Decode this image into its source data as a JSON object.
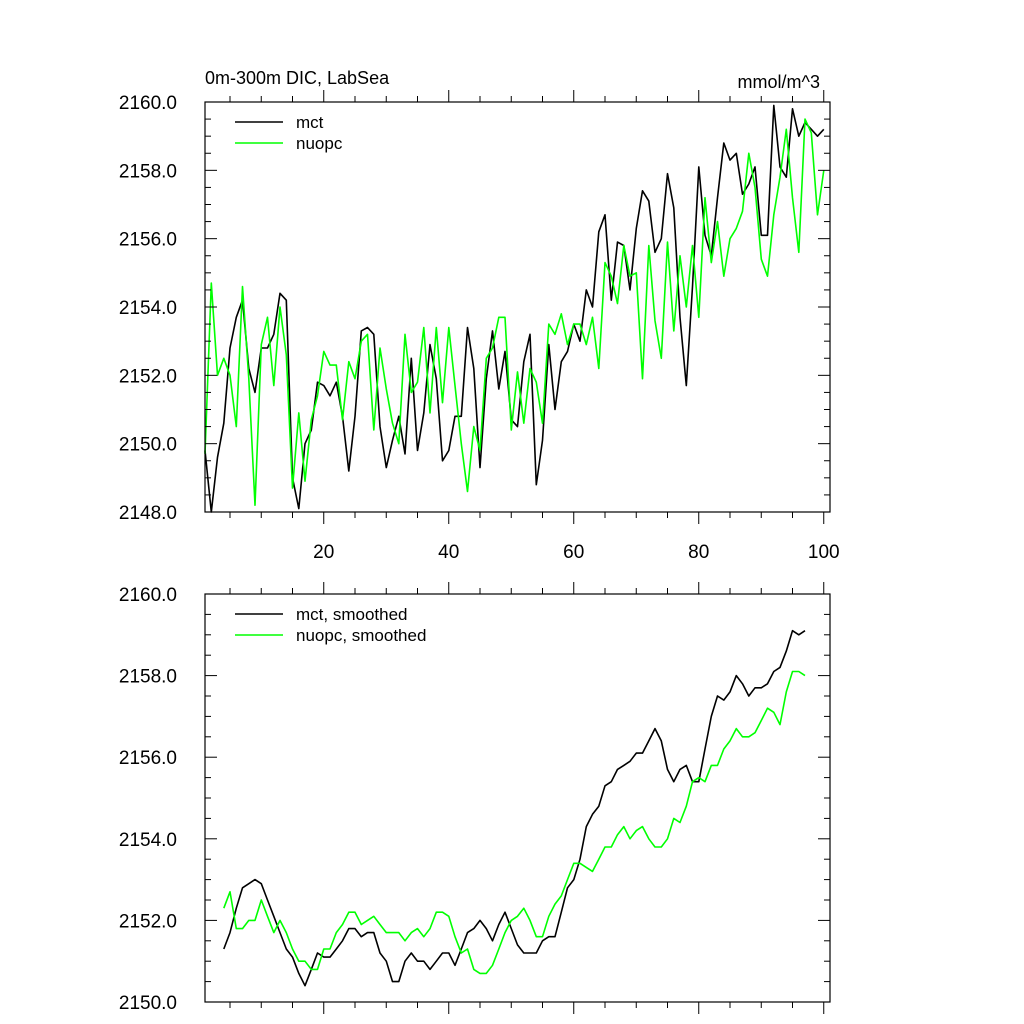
{
  "chart_data": [
    {
      "type": "line",
      "title_left": "0m-300m DIC, LabSea",
      "title_right": "mmol/m^3",
      "xlim": [
        1,
        101
      ],
      "ylim": [
        2148.0,
        2160.0
      ],
      "x_ticks": [
        20,
        40,
        60,
        80,
        100
      ],
      "x_tick_labels": [
        "20",
        "40",
        "60",
        "80",
        "100"
      ],
      "y_ticks": [
        2148,
        2150,
        2152,
        2154,
        2156,
        2158,
        2160
      ],
      "y_tick_labels": [
        "2148.0",
        "2150.0",
        "2152.0",
        "2154.0",
        "2156.0",
        "2158.0",
        "2160.0"
      ],
      "legend_position": "top-left",
      "series": [
        {
          "name": "mct",
          "color": "#000000",
          "x_start": 1,
          "values": [
            2149.8,
            2148.0,
            2149.6,
            2150.6,
            2152.8,
            2153.7,
            2154.2,
            2152.2,
            2151.5,
            2152.8,
            2152.8,
            2153.2,
            2154.4,
            2154.2,
            2149.0,
            2148.1,
            2150.0,
            2150.4,
            2151.8,
            2151.7,
            2151.4,
            2151.8,
            2150.8,
            2149.2,
            2150.8,
            2153.3,
            2153.4,
            2153.2,
            2150.5,
            2149.3,
            2150.1,
            2150.8,
            2149.7,
            2152.5,
            2149.8,
            2150.9,
            2152.9,
            2151.9,
            2149.5,
            2149.8,
            2150.8,
            2150.8,
            2153.4,
            2152.2,
            2149.3,
            2151.9,
            2153.3,
            2151.6,
            2152.7,
            2150.7,
            2150.5,
            2152.4,
            2153.2,
            2148.8,
            2150.1,
            2152.9,
            2151.0,
            2152.4,
            2152.7,
            2153.5,
            2153.0,
            2154.5,
            2154.0,
            2156.2,
            2156.7,
            2154.2,
            2155.9,
            2155.8,
            2154.5,
            2156.3,
            2157.4,
            2157.1,
            2155.6,
            2156.0,
            2157.9,
            2156.9,
            2153.7,
            2151.7,
            2154.6,
            2158.1,
            2156.1,
            2155.5,
            2157.2,
            2158.8,
            2158.3,
            2158.5,
            2157.3,
            2157.6,
            2158.1,
            2156.1,
            2156.1,
            2159.9,
            2158.1,
            2157.8,
            2159.8,
            2159.0,
            2159.4,
            2159.2,
            2159.0,
            2159.2
          ]
        },
        {
          "name": "nuopc",
          "color": "#00ff00",
          "x_start": 1,
          "values": [
            2149.7,
            2154.7,
            2152.0,
            2152.5,
            2152.0,
            2150.5,
            2154.6,
            2151.9,
            2148.2,
            2152.9,
            2153.7,
            2151.7,
            2154.0,
            2152.6,
            2148.7,
            2150.9,
            2148.9,
            2150.7,
            2151.4,
            2152.7,
            2152.3,
            2152.3,
            2150.7,
            2152.4,
            2151.9,
            2153.0,
            2153.2,
            2150.4,
            2152.8,
            2151.6,
            2150.6,
            2150.0,
            2153.2,
            2151.5,
            2151.8,
            2153.4,
            2150.9,
            2153.4,
            2151.2,
            2153.4,
            2151.7,
            2150.0,
            2148.6,
            2150.5,
            2149.8,
            2152.5,
            2152.8,
            2153.7,
            2153.7,
            2150.4,
            2152.1,
            2150.6,
            2152.2,
            2151.8,
            2150.6,
            2153.5,
            2153.2,
            2153.8,
            2152.9,
            2153.5,
            2153.5,
            2152.9,
            2153.7,
            2152.2,
            2155.3,
            2154.9,
            2154.1,
            2155.8,
            2154.9,
            2155.0,
            2151.9,
            2155.8,
            2153.6,
            2152.5,
            2155.9,
            2153.3,
            2155.5,
            2154.0,
            2155.8,
            2153.7,
            2157.2,
            2155.3,
            2156.5,
            2154.9,
            2156.0,
            2156.3,
            2156.8,
            2158.5,
            2157.5,
            2155.4,
            2154.9,
            2156.7,
            2157.8,
            2159.2,
            2157.2,
            2155.6,
            2159.5,
            2159.1,
            2156.7,
            2158.0
          ]
        }
      ]
    },
    {
      "type": "line",
      "xlim": [
        1,
        101
      ],
      "ylim": [
        2150.0,
        2160.0
      ],
      "x_ticks": [
        20,
        40,
        60,
        80,
        100
      ],
      "y_ticks": [
        2150,
        2152,
        2154,
        2156,
        2158,
        2160
      ],
      "y_tick_labels": [
        "2150.0",
        "2152.0",
        "2154.0",
        "2156.0",
        "2158.0",
        "2160.0"
      ],
      "legend_position": "top-left",
      "series": [
        {
          "name": "mct, smoothed",
          "color": "#000000",
          "x_start": 4,
          "values": [
            2151.3,
            2151.7,
            2152.3,
            2152.8,
            2152.9,
            2153.0,
            2152.9,
            2152.5,
            2152.1,
            2151.7,
            2151.3,
            2151.1,
            2150.7,
            2150.4,
            2150.8,
            2151.2,
            2151.1,
            2151.1,
            2151.3,
            2151.5,
            2151.8,
            2151.8,
            2151.6,
            2151.7,
            2151.7,
            2151.2,
            2151.0,
            2150.5,
            2150.5,
            2151.0,
            2151.2,
            2151.0,
            2151.0,
            2150.8,
            2151.0,
            2151.2,
            2151.2,
            2150.9,
            2151.3,
            2151.7,
            2151.8,
            2152.0,
            2151.8,
            2151.5,
            2151.9,
            2152.2,
            2151.8,
            2151.4,
            2151.2,
            2151.2,
            2151.2,
            2151.5,
            2151.6,
            2151.6,
            2152.2,
            2152.8,
            2153.0,
            2153.5,
            2154.3,
            2154.6,
            2154.8,
            2155.3,
            2155.4,
            2155.7,
            2155.8,
            2155.9,
            2156.1,
            2156.1,
            2156.4,
            2156.7,
            2156.4,
            2155.7,
            2155.4,
            2155.7,
            2155.8,
            2155.4,
            2155.4,
            2156.2,
            2157.0,
            2157.5,
            2157.4,
            2157.6,
            2158.0,
            2157.8,
            2157.5,
            2157.7,
            2157.7,
            2157.8,
            2158.1,
            2158.2,
            2158.6,
            2159.1,
            2159.0,
            2159.1
          ]
        },
        {
          "name": "nuopc, smoothed",
          "color": "#00ff00",
          "x_start": 4,
          "values": [
            2152.3,
            2152.7,
            2151.8,
            2151.8,
            2152.0,
            2152.0,
            2152.5,
            2152.1,
            2151.7,
            2152.0,
            2151.7,
            2151.3,
            2151.0,
            2151.0,
            2150.8,
            2150.8,
            2151.3,
            2151.3,
            2151.7,
            2151.9,
            2152.2,
            2152.2,
            2151.9,
            2152.0,
            2152.1,
            2151.9,
            2151.7,
            2151.7,
            2151.7,
            2151.5,
            2151.7,
            2151.8,
            2151.6,
            2151.8,
            2152.2,
            2152.2,
            2152.1,
            2151.6,
            2151.2,
            2151.3,
            2150.8,
            2150.7,
            2150.7,
            2150.9,
            2151.3,
            2151.7,
            2152.0,
            2152.1,
            2152.3,
            2152.0,
            2151.6,
            2151.6,
            2152.1,
            2152.4,
            2152.6,
            2153.0,
            2153.4,
            2153.4,
            2153.3,
            2153.2,
            2153.5,
            2153.8,
            2153.8,
            2154.1,
            2154.3,
            2154.0,
            2154.2,
            2154.3,
            2154.0,
            2153.8,
            2153.8,
            2154.0,
            2154.5,
            2154.4,
            2154.8,
            2155.4,
            2155.5,
            2155.4,
            2155.8,
            2155.8,
            2156.2,
            2156.4,
            2156.7,
            2156.5,
            2156.5,
            2156.6,
            2156.9,
            2157.2,
            2157.1,
            2156.8,
            2157.6,
            2158.1,
            2158.1,
            2158.0
          ]
        }
      ]
    }
  ]
}
